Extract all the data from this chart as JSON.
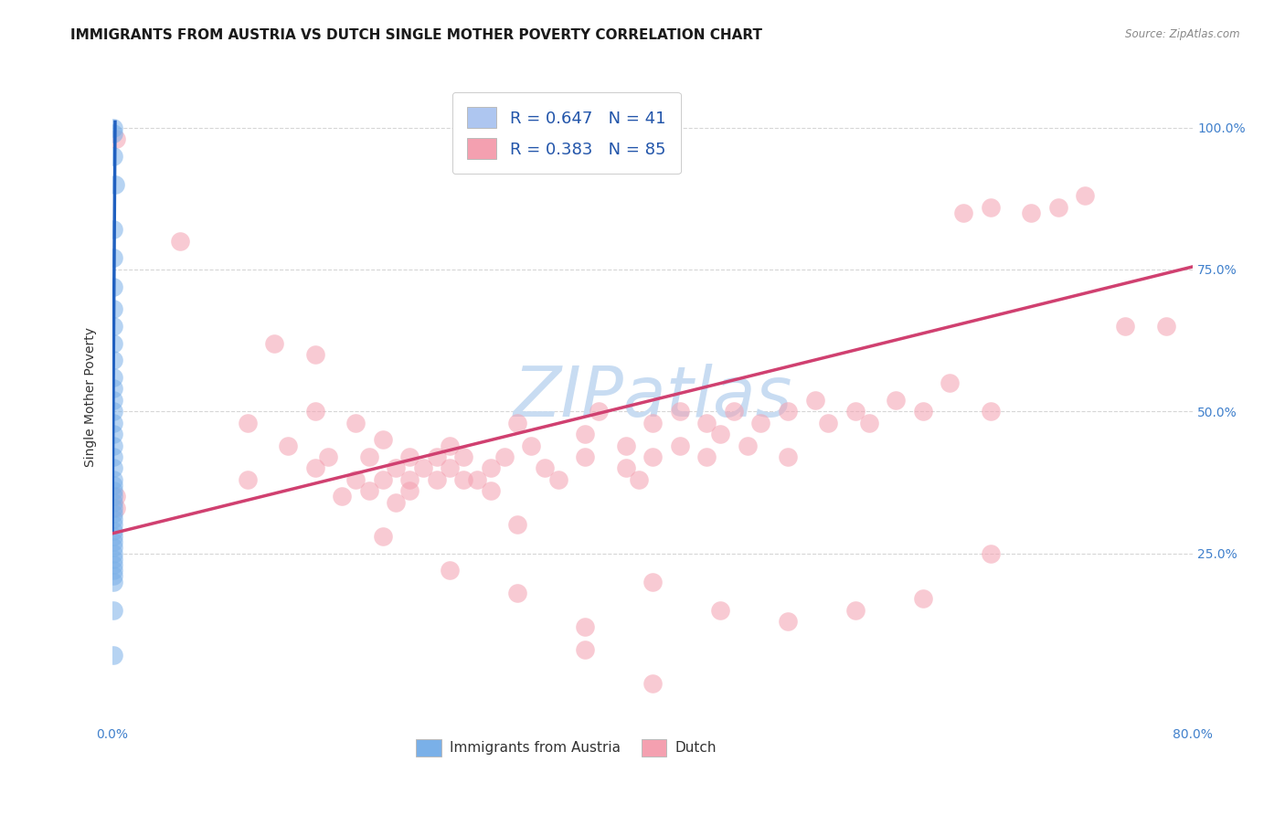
{
  "title": "IMMIGRANTS FROM AUSTRIA VS DUTCH SINGLE MOTHER POVERTY CORRELATION CHART",
  "source": "Source: ZipAtlas.com",
  "ylabel": "Single Mother Poverty",
  "ytick_labels": [
    "100.0%",
    "75.0%",
    "50.0%",
    "25.0%"
  ],
  "ytick_values": [
    1.0,
    0.75,
    0.5,
    0.25
  ],
  "xlim": [
    0.0,
    0.8
  ],
  "ylim": [
    -0.05,
    1.1
  ],
  "watermark": "ZIPatlas",
  "legend_entries": [
    {
      "label": "R = 0.647   N = 41",
      "color": "#aec6f0"
    },
    {
      "label": "R = 0.383   N = 85",
      "color": "#f4a0b0"
    }
  ],
  "austria_color": "#7ab0e8",
  "dutch_color": "#f4a0b0",
  "austria_line_color": "#2060c0",
  "dutch_line_color": "#d04070",
  "austria_scatter_x": [
    0.001,
    0.001,
    0.001,
    0.002,
    0.001,
    0.001,
    0.001,
    0.001,
    0.001,
    0.001,
    0.001,
    0.001,
    0.001,
    0.001,
    0.001,
    0.001,
    0.001,
    0.001,
    0.001,
    0.001,
    0.001,
    0.001,
    0.001,
    0.001,
    0.001,
    0.001,
    0.001,
    0.001,
    0.001,
    0.001,
    0.001,
    0.001,
    0.001,
    0.001,
    0.001,
    0.001,
    0.001,
    0.001,
    0.001,
    0.001,
    0.001
  ],
  "austria_scatter_y": [
    1.0,
    0.99,
    0.95,
    0.9,
    0.82,
    0.77,
    0.72,
    0.68,
    0.65,
    0.62,
    0.59,
    0.56,
    0.54,
    0.52,
    0.5,
    0.48,
    0.46,
    0.44,
    0.42,
    0.4,
    0.38,
    0.37,
    0.36,
    0.35,
    0.34,
    0.33,
    0.32,
    0.31,
    0.3,
    0.29,
    0.28,
    0.27,
    0.26,
    0.25,
    0.24,
    0.23,
    0.22,
    0.21,
    0.2,
    0.15,
    0.07
  ],
  "dutch_scatter_x": [
    0.003,
    0.003,
    0.003,
    0.05,
    0.1,
    0.1,
    0.12,
    0.13,
    0.15,
    0.15,
    0.15,
    0.16,
    0.17,
    0.18,
    0.18,
    0.19,
    0.19,
    0.2,
    0.2,
    0.21,
    0.21,
    0.22,
    0.22,
    0.22,
    0.23,
    0.24,
    0.24,
    0.25,
    0.25,
    0.26,
    0.26,
    0.27,
    0.28,
    0.28,
    0.29,
    0.3,
    0.31,
    0.32,
    0.33,
    0.35,
    0.35,
    0.36,
    0.38,
    0.38,
    0.39,
    0.4,
    0.4,
    0.42,
    0.42,
    0.44,
    0.44,
    0.45,
    0.46,
    0.47,
    0.48,
    0.5,
    0.5,
    0.52,
    0.53,
    0.55,
    0.56,
    0.58,
    0.6,
    0.62,
    0.63,
    0.65,
    0.65,
    0.68,
    0.7,
    0.72,
    0.75,
    0.78,
    0.3,
    0.35,
    0.4,
    0.45,
    0.5,
    0.55,
    0.6,
    0.65,
    0.2,
    0.25,
    0.3,
    0.35,
    0.4
  ],
  "dutch_scatter_y": [
    0.98,
    0.35,
    0.33,
    0.8,
    0.48,
    0.38,
    0.62,
    0.44,
    0.5,
    0.4,
    0.6,
    0.42,
    0.35,
    0.48,
    0.38,
    0.42,
    0.36,
    0.45,
    0.38,
    0.4,
    0.34,
    0.42,
    0.38,
    0.36,
    0.4,
    0.42,
    0.38,
    0.44,
    0.4,
    0.38,
    0.42,
    0.38,
    0.4,
    0.36,
    0.42,
    0.48,
    0.44,
    0.4,
    0.38,
    0.46,
    0.42,
    0.5,
    0.4,
    0.44,
    0.38,
    0.48,
    0.42,
    0.5,
    0.44,
    0.42,
    0.48,
    0.46,
    0.5,
    0.44,
    0.48,
    0.5,
    0.42,
    0.52,
    0.48,
    0.5,
    0.48,
    0.52,
    0.5,
    0.55,
    0.85,
    0.86,
    0.5,
    0.85,
    0.86,
    0.88,
    0.65,
    0.65,
    0.18,
    0.12,
    0.2,
    0.15,
    0.13,
    0.15,
    0.17,
    0.25,
    0.28,
    0.22,
    0.3,
    0.08,
    0.02
  ],
  "austria_trendline_x": [
    0.0,
    0.002
  ],
  "austria_trendline_y": [
    0.29,
    1.01
  ],
  "dutch_trendline_x": [
    0.0,
    0.8
  ],
  "dutch_trendline_y": [
    0.285,
    0.755
  ],
  "grid_color": "#cccccc",
  "background_color": "#ffffff",
  "title_fontsize": 11,
  "axis_label_fontsize": 10,
  "tick_fontsize": 10,
  "legend_fontsize": 13,
  "watermark_fontsize": 55,
  "watermark_color": "#c8dcf2",
  "legend_text_color": "#2255aa",
  "ytick_color": "#4080cc",
  "xtick_color": "#4080cc"
}
